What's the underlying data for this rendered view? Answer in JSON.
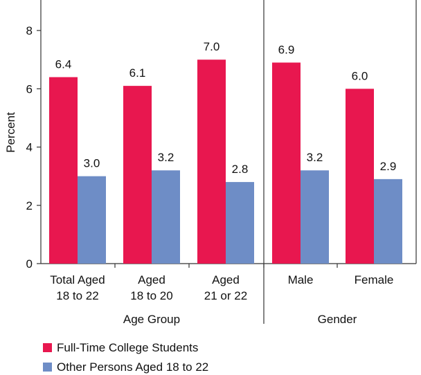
{
  "chart_data": {
    "type": "bar",
    "ylabel": "Percent",
    "ylim": [
      0,
      9
    ],
    "yticks": [
      0,
      2,
      4,
      6,
      8
    ],
    "grid": false,
    "legend_position": "bottom-left",
    "colors": {
      "series1": "#e8174f",
      "series2": "#6e8dc6"
    },
    "series": [
      {
        "name": "Full-Time College Students",
        "values": [
          6.4,
          6.1,
          7.0,
          6.9,
          6.0
        ],
        "labels": [
          "6.4",
          "6.1",
          "7.0",
          "6.9",
          "6.0"
        ]
      },
      {
        "name": "Other Persons Aged 18 to 22",
        "values": [
          3.0,
          3.2,
          2.8,
          3.2,
          2.9
        ],
        "labels": [
          "3.0",
          "3.2",
          "2.8",
          "3.2",
          "2.9"
        ]
      }
    ],
    "categories": [
      {
        "lines": [
          "Total Aged",
          "18 to 22"
        ]
      },
      {
        "lines": [
          "Aged",
          "18 to 20"
        ]
      },
      {
        "lines": [
          "Aged",
          "21 or 22"
        ]
      },
      {
        "lines": [
          "Male"
        ]
      },
      {
        "lines": [
          "Female"
        ]
      }
    ],
    "groups": [
      {
        "label": "Age Group",
        "count": 3
      },
      {
        "label": "Gender",
        "count": 2
      }
    ]
  }
}
